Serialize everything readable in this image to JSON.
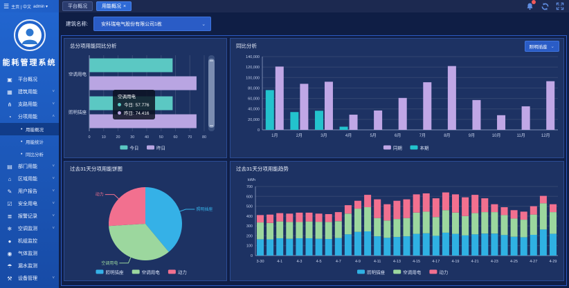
{
  "app": {
    "title": "能耗管理系统"
  },
  "topbar": {
    "locale": "主页 | 中文",
    "user": "admin",
    "tabs": [
      {
        "label": "平台概况",
        "active": false,
        "closable": false
      },
      {
        "label": "用能概况",
        "active": true,
        "closable": true
      }
    ]
  },
  "selector": {
    "label": "建筑名称:",
    "value": "安科瑞电气股份有限公司1栋"
  },
  "sidebar": {
    "items": [
      {
        "label": "平台概况",
        "icon": "dashboard-icon",
        "glyph": "▣"
      },
      {
        "label": "建筑用能",
        "icon": "building-icon",
        "glyph": "▦",
        "chevron": "down"
      },
      {
        "label": "支路用能",
        "icon": "branch-icon",
        "glyph": "⋔",
        "chevron": "down"
      },
      {
        "label": "分项用能",
        "icon": "pie-icon",
        "glyph": "◔",
        "chevron": "up",
        "expanded": true,
        "children": [
          {
            "label": "用能概况",
            "active": true
          },
          {
            "label": "用能统计",
            "active": false
          },
          {
            "label": "同比分析",
            "active": false
          }
        ]
      },
      {
        "label": "部门用能",
        "icon": "folder-icon",
        "glyph": "▤",
        "chevron": "down"
      },
      {
        "label": "区域用能",
        "icon": "bank-icon",
        "glyph": "⌂",
        "chevron": "down"
      },
      {
        "label": "用户报告",
        "icon": "report-icon",
        "glyph": "✎",
        "chevron": "down"
      },
      {
        "label": "安全用电",
        "icon": "shield-icon",
        "glyph": "☑",
        "chevron": "down"
      },
      {
        "label": "报警记录",
        "icon": "alarm-log-icon",
        "glyph": "≣",
        "chevron": "down"
      },
      {
        "label": "空调监测",
        "icon": "ac-icon",
        "glyph": "❄",
        "chevron": "down"
      },
      {
        "label": "机组监控",
        "icon": "camera-icon",
        "glyph": "●"
      },
      {
        "label": "气体监测",
        "icon": "gas-icon",
        "glyph": "◉"
      },
      {
        "label": "漏水监测",
        "icon": "water-icon",
        "glyph": "☂"
      },
      {
        "label": "设备管理",
        "icon": "device-icon",
        "glyph": "⚒",
        "chevron": "down"
      }
    ]
  },
  "panels": {
    "p1": {
      "title": "总分项用能同比分析"
    },
    "p2": {
      "title": "同比分析",
      "dropdown": "照明插座"
    },
    "p3": {
      "title": "过去31天分项用能饼图"
    },
    "p4": {
      "title": "过去31天分项用能趋势"
    }
  },
  "tooltip": {
    "title": "空调用电",
    "rows": [
      {
        "text": "今日: 57.776",
        "color": "#5bc8c3"
      },
      {
        "text": "昨日: 74.416",
        "color": "#b9a5e2"
      }
    ]
  },
  "chart_data": [
    {
      "type": "bar",
      "orientation": "horizontal",
      "title": "总分项用能同比分析",
      "categories": [
        "空调用电",
        "照明插座"
      ],
      "series": [
        {
          "name": "今日",
          "color": "#5bc8c3",
          "values": [
            57.776,
            57.8
          ]
        },
        {
          "name": "昨日",
          "color": "#b9a5e2",
          "values": [
            74.416,
            74.4
          ]
        }
      ],
      "xlim": [
        0,
        80
      ],
      "xticks": [
        0,
        10,
        20,
        30,
        40,
        50,
        60,
        70,
        80
      ],
      "legend_position": "bottom",
      "has_datazoom": true
    },
    {
      "type": "bar",
      "orientation": "vertical",
      "title": "同比分析",
      "categories": [
        "1月",
        "2月",
        "3月",
        "4月",
        "5月",
        "6月",
        "7月",
        "8月",
        "9月",
        "10月",
        "11月",
        "12月"
      ],
      "series": [
        {
          "name": "本期",
          "color": "#23c3cd",
          "values": [
            76000,
            34000,
            36500,
            6000,
            0,
            0,
            0,
            0,
            0,
            0,
            0,
            0
          ]
        },
        {
          "name": "同期",
          "color": "#c0a7e6",
          "values": [
            121000,
            88000,
            92000,
            29000,
            37000,
            61000,
            91000,
            122000,
            57000,
            28000,
            45000,
            93000
          ]
        }
      ],
      "ylim": [
        0,
        140000
      ],
      "ytick_step": 20000,
      "legend_order": [
        "同期",
        "本期"
      ],
      "legend_position": "bottom"
    },
    {
      "type": "pie",
      "title": "过去31天分项用能饼图",
      "slices": [
        {
          "name": "照明插座",
          "percent": 39,
          "color": "#35b1e7"
        },
        {
          "name": "空调用电",
          "percent": 35,
          "color": "#9cd79e"
        },
        {
          "name": "动力",
          "percent": 26,
          "color": "#f2708f"
        }
      ],
      "legend_position": "bottom"
    },
    {
      "type": "bar",
      "stacked": true,
      "title": "过去31天分项用能趋势",
      "ylabel": "kWh",
      "categories": [
        "3-30",
        "3-31",
        "4-1",
        "4-2",
        "4-3",
        "4-4",
        "4-5",
        "4-6",
        "4-7",
        "4-8",
        "4-9",
        "4-10",
        "4-11",
        "4-12",
        "4-13",
        "4-14",
        "4-15",
        "4-16",
        "4-17",
        "4-18",
        "4-19",
        "4-20",
        "4-21",
        "4-22",
        "4-23",
        "4-24",
        "4-25",
        "4-26",
        "4-27",
        "4-28",
        "4-29"
      ],
      "series": [
        {
          "name": "照明插座",
          "color": "#2fb1e3",
          "values": [
            165,
            165,
            175,
            170,
            175,
            175,
            170,
            168,
            178,
            215,
            240,
            245,
            195,
            180,
            188,
            195,
            220,
            225,
            200,
            232,
            220,
            205,
            215,
            222,
            222,
            208,
            190,
            185,
            210,
            265,
            220
          ]
        },
        {
          "name": "空调用电",
          "color": "#9cd79e",
          "values": [
            170,
            165,
            170,
            170,
            165,
            170,
            172,
            172,
            170,
            210,
            235,
            245,
            185,
            175,
            182,
            185,
            215,
            220,
            190,
            228,
            215,
            195,
            215,
            218,
            218,
            202,
            185,
            178,
            205,
            265,
            220
          ]
        },
        {
          "name": "动力",
          "color": "#f2708f",
          "values": [
            75,
            85,
            85,
            85,
            95,
            90,
            83,
            80,
            92,
            85,
            80,
            125,
            190,
            165,
            185,
            190,
            185,
            185,
            190,
            180,
            185,
            190,
            185,
            140,
            80,
            80,
            85,
            82,
            85,
            75,
            80
          ]
        }
      ],
      "ylim": [
        0,
        700
      ],
      "ytick_step": 100
    }
  ]
}
